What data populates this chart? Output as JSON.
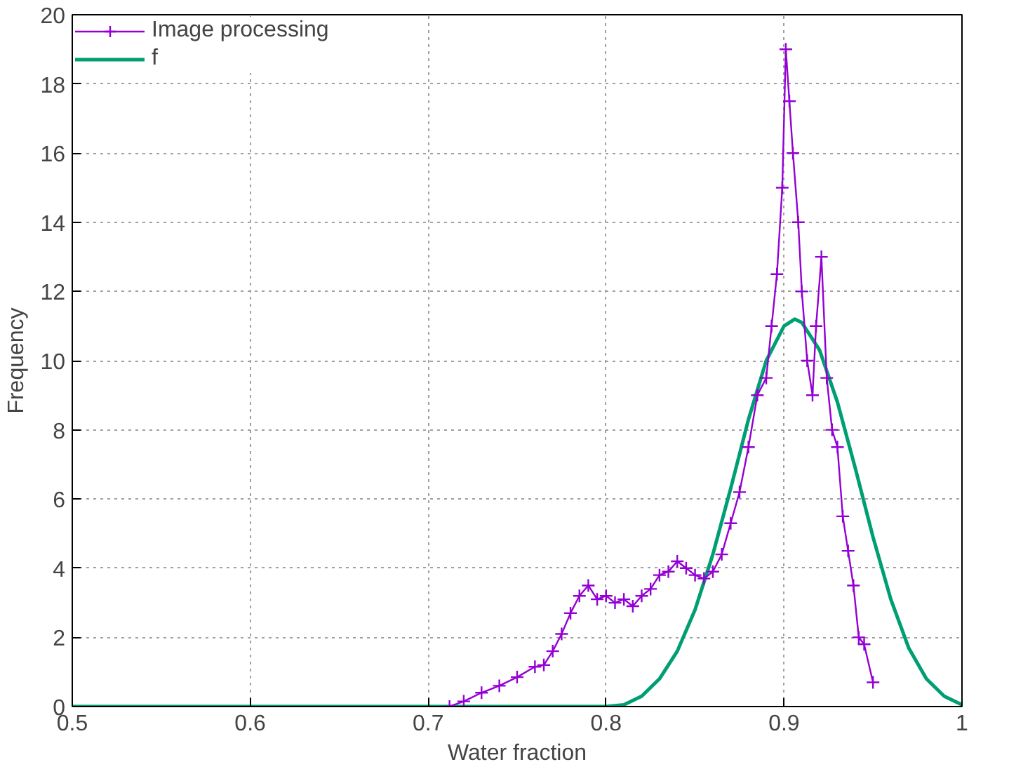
{
  "chart_data": {
    "type": "line",
    "xlabel": "Water fraction",
    "ylabel": "Frequency",
    "xlim": [
      0.5,
      1.0
    ],
    "ylim": [
      0,
      20
    ],
    "xticks": [
      0.5,
      0.6,
      0.7,
      0.8,
      0.9,
      {
        "value": 1.0,
        "label": "1"
      }
    ],
    "yticks": [
      0,
      2,
      4,
      6,
      8,
      10,
      12,
      14,
      16,
      18,
      20
    ],
    "grid": true,
    "legend": "top left",
    "series": [
      {
        "name": "Image processing",
        "color": "#9400d3",
        "marker": "cross",
        "x": [
          0.712,
          0.72,
          0.73,
          0.74,
          0.75,
          0.76,
          0.765,
          0.77,
          0.775,
          0.78,
          0.785,
          0.79,
          0.795,
          0.8,
          0.805,
          0.81,
          0.815,
          0.82,
          0.825,
          0.83,
          0.835,
          0.84,
          0.845,
          0.85,
          0.855,
          0.86,
          0.865,
          0.87,
          0.875,
          0.88,
          0.885,
          0.89,
          0.893,
          0.896,
          0.899,
          0.901,
          0.903,
          0.905,
          0.908,
          0.91,
          0.913,
          0.916,
          0.918,
          0.921,
          0.924,
          0.927,
          0.93,
          0.933,
          0.936,
          0.939,
          0.942,
          0.945,
          0.95
        ],
        "values": [
          0.0,
          0.15,
          0.4,
          0.6,
          0.85,
          1.15,
          1.2,
          1.6,
          2.1,
          2.7,
          3.2,
          3.5,
          3.1,
          3.2,
          3.0,
          3.1,
          2.9,
          3.2,
          3.4,
          3.8,
          3.9,
          4.2,
          4.0,
          3.8,
          3.7,
          3.9,
          4.4,
          5.3,
          6.2,
          7.5,
          9.0,
          9.5,
          11,
          12.5,
          15,
          19.0,
          17.5,
          16,
          14,
          12,
          10,
          9,
          11,
          13,
          9.5,
          8,
          7.5,
          5.5,
          4.5,
          3.5,
          2.0,
          1.8,
          0.7
        ]
      },
      {
        "name": "f",
        "color": "#009e73",
        "marker": "none",
        "x": [
          0.5,
          0.6,
          0.7,
          0.8,
          0.81,
          0.82,
          0.83,
          0.84,
          0.85,
          0.86,
          0.87,
          0.88,
          0.89,
          0.9,
          0.906,
          0.91,
          0.92,
          0.93,
          0.94,
          0.95,
          0.96,
          0.97,
          0.98,
          0.99,
          1.0
        ],
        "values": [
          0,
          0,
          0,
          0,
          0.05,
          0.3,
          0.8,
          1.6,
          2.8,
          4.4,
          6.3,
          8.3,
          10,
          11,
          11.2,
          11.1,
          10.3,
          8.8,
          6.9,
          4.9,
          3.1,
          1.7,
          0.8,
          0.3,
          0.05
        ]
      }
    ]
  }
}
